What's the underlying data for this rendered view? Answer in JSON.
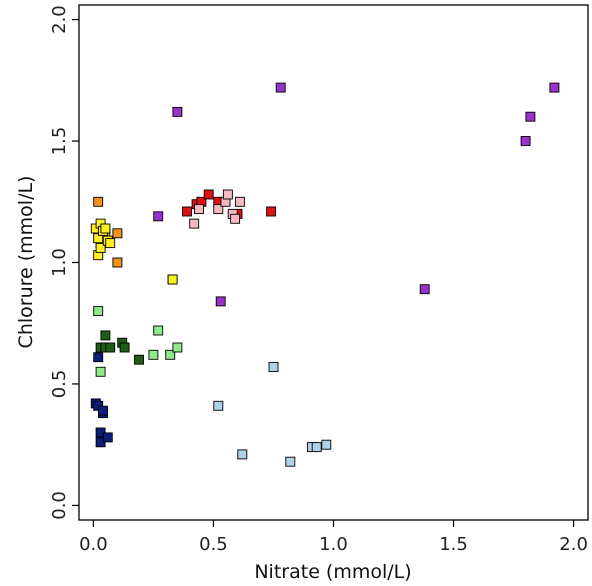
{
  "chart_data": {
    "type": "scatter",
    "title": "",
    "xlabel": "Nitrate (mmol/L)",
    "ylabel": "Chlorure (mmol/L)",
    "xlim": [
      -0.06,
      2.06
    ],
    "ylim": [
      -0.06,
      2.06
    ],
    "xticks": [
      {
        "value": 0.0,
        "label": "0.0"
      },
      {
        "value": 0.5,
        "label": "0.5"
      },
      {
        "value": 1.0,
        "label": "1.0"
      },
      {
        "value": 1.5,
        "label": "1.5"
      },
      {
        "value": 2.0,
        "label": "2.0"
      }
    ],
    "yticks": [
      {
        "value": 0.0,
        "label": "0.0"
      },
      {
        "value": 0.5,
        "label": "0.5"
      },
      {
        "value": 1.0,
        "label": "1.0"
      },
      {
        "value": 1.5,
        "label": "1.5"
      },
      {
        "value": 2.0,
        "label": "2.0"
      }
    ],
    "grid": false,
    "legend": "none",
    "series": [
      {
        "color": "#9932cc",
        "points": [
          [
            0.35,
            1.62
          ],
          [
            0.78,
            1.72
          ],
          [
            0.27,
            1.19
          ],
          [
            0.53,
            0.84
          ],
          [
            0.33,
            0.93
          ],
          [
            1.38,
            0.89
          ],
          [
            1.8,
            1.5
          ],
          [
            1.82,
            1.6
          ],
          [
            1.92,
            1.72
          ]
        ]
      },
      {
        "color": "#dd1111",
        "points": [
          [
            0.39,
            1.21
          ],
          [
            0.43,
            1.24
          ],
          [
            0.45,
            1.25
          ],
          [
            0.48,
            1.28
          ],
          [
            0.52,
            1.25
          ],
          [
            0.6,
            1.2
          ],
          [
            0.74,
            1.21
          ]
        ]
      },
      {
        "color": "#f4b8c0",
        "points": [
          [
            0.42,
            1.16
          ],
          [
            0.44,
            1.22
          ],
          [
            0.52,
            1.22
          ],
          [
            0.55,
            1.25
          ],
          [
            0.56,
            1.28
          ],
          [
            0.58,
            1.2
          ],
          [
            0.59,
            1.18
          ],
          [
            0.61,
            1.25
          ]
        ]
      },
      {
        "color": "#f5921c",
        "points": [
          [
            0.02,
            1.25
          ],
          [
            0.03,
            1.08
          ],
          [
            0.04,
            1.11
          ],
          [
            0.05,
            1.12
          ],
          [
            0.1,
            1.12
          ],
          [
            0.1,
            1.0
          ]
        ]
      },
      {
        "color": "#ffee22",
        "points": [
          [
            0.01,
            1.14
          ],
          [
            0.02,
            1.03
          ],
          [
            0.02,
            1.1
          ],
          [
            0.03,
            1.16
          ],
          [
            0.03,
            1.06
          ],
          [
            0.04,
            1.13
          ],
          [
            0.05,
            1.14
          ],
          [
            0.06,
            1.09
          ],
          [
            0.07,
            1.08
          ],
          [
            0.33,
            0.93
          ]
        ]
      },
      {
        "color": "#1f5c14",
        "points": [
          [
            0.03,
            0.65
          ],
          [
            0.05,
            0.7
          ],
          [
            0.05,
            0.65
          ],
          [
            0.07,
            0.65
          ],
          [
            0.12,
            0.67
          ],
          [
            0.13,
            0.65
          ],
          [
            0.19,
            0.6
          ]
        ]
      },
      {
        "color": "#8fe88a",
        "points": [
          [
            0.02,
            0.8
          ],
          [
            0.03,
            0.55
          ],
          [
            0.25,
            0.62
          ],
          [
            0.27,
            0.72
          ],
          [
            0.32,
            0.62
          ],
          [
            0.35,
            0.65
          ]
        ]
      },
      {
        "color": "#0b1e7a",
        "points": [
          [
            0.01,
            0.42
          ],
          [
            0.02,
            0.61
          ],
          [
            0.02,
            0.41
          ],
          [
            0.03,
            0.3
          ],
          [
            0.03,
            0.26
          ],
          [
            0.04,
            0.38
          ],
          [
            0.04,
            0.39
          ],
          [
            0.06,
            0.28
          ]
        ]
      },
      {
        "color": "#aed3e6",
        "points": [
          [
            0.52,
            0.41
          ],
          [
            0.62,
            0.21
          ],
          [
            0.75,
            0.57
          ],
          [
            0.82,
            0.18
          ],
          [
            0.91,
            0.24
          ],
          [
            0.93,
            0.24
          ],
          [
            0.97,
            0.25
          ]
        ]
      }
    ]
  }
}
